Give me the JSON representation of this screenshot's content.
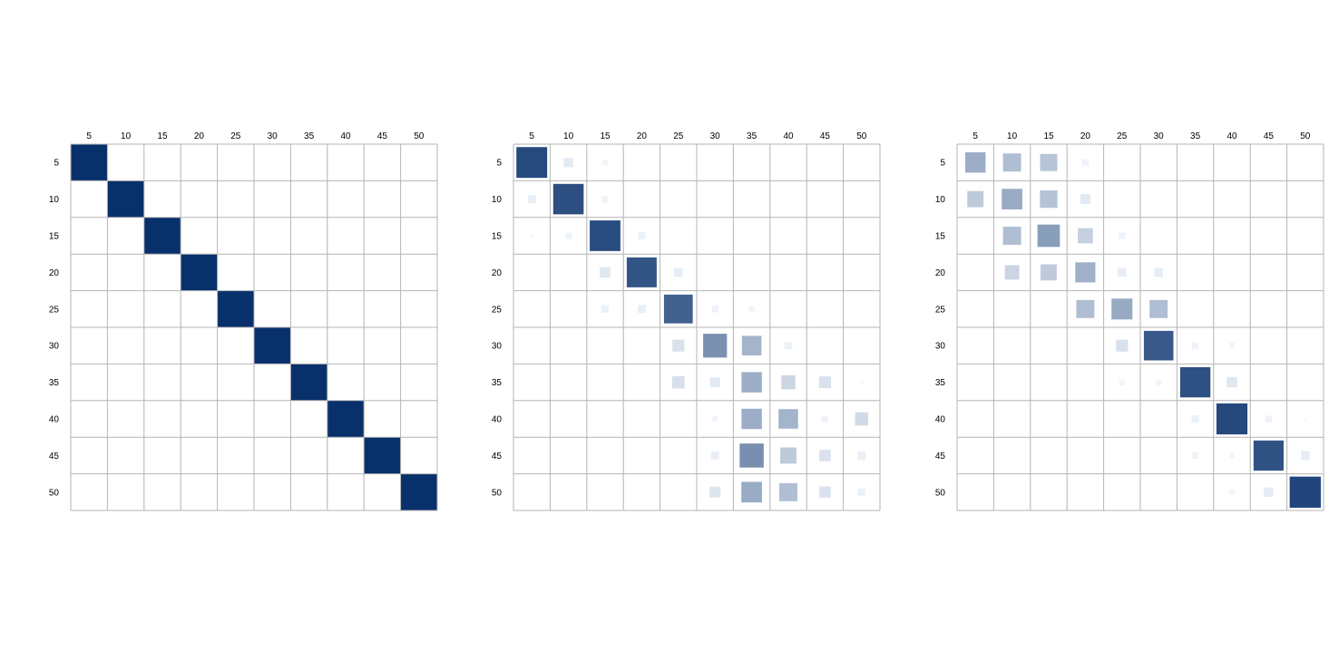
{
  "chart_data": [
    {
      "type": "heatmap",
      "title": "",
      "xlabel": "",
      "ylabel": "",
      "encoding": "square size and color proportional to value",
      "color_scale": [
        "#f7fbff",
        "#08306b"
      ],
      "categories": [
        "5",
        "10",
        "15",
        "20",
        "25",
        "30",
        "35",
        "40",
        "45",
        "50"
      ],
      "row_categories": [
        "5",
        "10",
        "15",
        "20",
        "25",
        "30",
        "35",
        "40",
        "45",
        "50"
      ],
      "matrix": [
        [
          1,
          0,
          0,
          0,
          0,
          0,
          0,
          0,
          0,
          0
        ],
        [
          0,
          1,
          0,
          0,
          0,
          0,
          0,
          0,
          0,
          0
        ],
        [
          0,
          0,
          1,
          0,
          0,
          0,
          0,
          0,
          0,
          0
        ],
        [
          0,
          0,
          0,
          1,
          0,
          0,
          0,
          0,
          0,
          0
        ],
        [
          0,
          0,
          0,
          0,
          1,
          0,
          0,
          0,
          0,
          0
        ],
        [
          0,
          0,
          0,
          0,
          0,
          1,
          0,
          0,
          0,
          0
        ],
        [
          0,
          0,
          0,
          0,
          0,
          0,
          1,
          0,
          0,
          0
        ],
        [
          0,
          0,
          0,
          0,
          0,
          0,
          0,
          1,
          0,
          0
        ],
        [
          0,
          0,
          0,
          0,
          0,
          0,
          0,
          0,
          1,
          0
        ],
        [
          0,
          0,
          0,
          0,
          0,
          0,
          0,
          0,
          0,
          1
        ]
      ]
    },
    {
      "type": "heatmap",
      "title": "",
      "xlabel": "",
      "ylabel": "",
      "encoding": "square size and color proportional to value",
      "color_scale": [
        "#f7fbff",
        "#08306b"
      ],
      "categories": [
        "5",
        "10",
        "15",
        "20",
        "25",
        "30",
        "35",
        "40",
        "45",
        "50"
      ],
      "row_categories": [
        "5",
        "10",
        "15",
        "20",
        "25",
        "30",
        "35",
        "40",
        "45",
        "50"
      ],
      "matrix": [
        [
          0.87,
          0.08,
          0.03,
          0,
          0,
          0,
          0,
          0,
          0,
          0
        ],
        [
          0.06,
          0.85,
          0.04,
          0,
          0,
          0,
          0,
          0,
          0,
          0
        ],
        [
          0.01,
          0.04,
          0.86,
          0.05,
          0,
          0,
          0,
          0,
          0,
          0
        ],
        [
          0,
          0,
          0.1,
          0.82,
          0.07,
          0,
          0,
          0,
          0,
          0
        ],
        [
          0,
          0,
          0.05,
          0.06,
          0.76,
          0.04,
          0.03,
          0,
          0,
          0
        ],
        [
          0,
          0,
          0,
          0,
          0.13,
          0.52,
          0.35,
          0.05,
          0,
          0
        ],
        [
          0,
          0,
          0,
          0,
          0.14,
          0.09,
          0.38,
          0.18,
          0.13,
          0.01
        ],
        [
          0,
          0,
          0,
          0,
          0,
          0.03,
          0.38,
          0.35,
          0.04,
          0.16
        ],
        [
          0,
          0,
          0,
          0,
          0,
          0.06,
          0.53,
          0.24,
          0.12,
          0.06
        ],
        [
          0,
          0,
          0,
          0,
          0,
          0.11,
          0.39,
          0.3,
          0.12,
          0.05
        ]
      ]
    },
    {
      "type": "heatmap",
      "title": "",
      "xlabel": "",
      "ylabel": "",
      "encoding": "square size and color proportional to value",
      "color_scale": [
        "#f7fbff",
        "#08306b"
      ],
      "categories": [
        "5",
        "10",
        "15",
        "20",
        "25",
        "30",
        "35",
        "40",
        "45",
        "50"
      ],
      "row_categories": [
        "5",
        "10",
        "15",
        "20",
        "25",
        "30",
        "35",
        "40",
        "45",
        "50"
      ],
      "matrix": [
        [
          0.38,
          0.3,
          0.27,
          0.04,
          0,
          0,
          0,
          0,
          0,
          0
        ],
        [
          0.24,
          0.39,
          0.28,
          0.09,
          0,
          0,
          0,
          0,
          0,
          0
        ],
        [
          0,
          0.3,
          0.46,
          0.21,
          0.04,
          0,
          0,
          0,
          0,
          0
        ],
        [
          0,
          0.19,
          0.24,
          0.37,
          0.07,
          0.07,
          0,
          0,
          0,
          0
        ],
        [
          0,
          0,
          0,
          0.3,
          0.4,
          0.3,
          0,
          0,
          0,
          0
        ],
        [
          0,
          0,
          0,
          0,
          0.13,
          0.8,
          0.04,
          0.03,
          0,
          0
        ],
        [
          0,
          0,
          0,
          0,
          0.03,
          0.03,
          0.84,
          0.1,
          0,
          0
        ],
        [
          0,
          0,
          0,
          0,
          0,
          0,
          0.05,
          0.88,
          0.04,
          0.01
        ],
        [
          0,
          0,
          0,
          0,
          0,
          0,
          0.04,
          0.03,
          0.83,
          0.07
        ],
        [
          0,
          0,
          0,
          0,
          0,
          0,
          0,
          0.03,
          0.08,
          0.89
        ]
      ]
    }
  ]
}
